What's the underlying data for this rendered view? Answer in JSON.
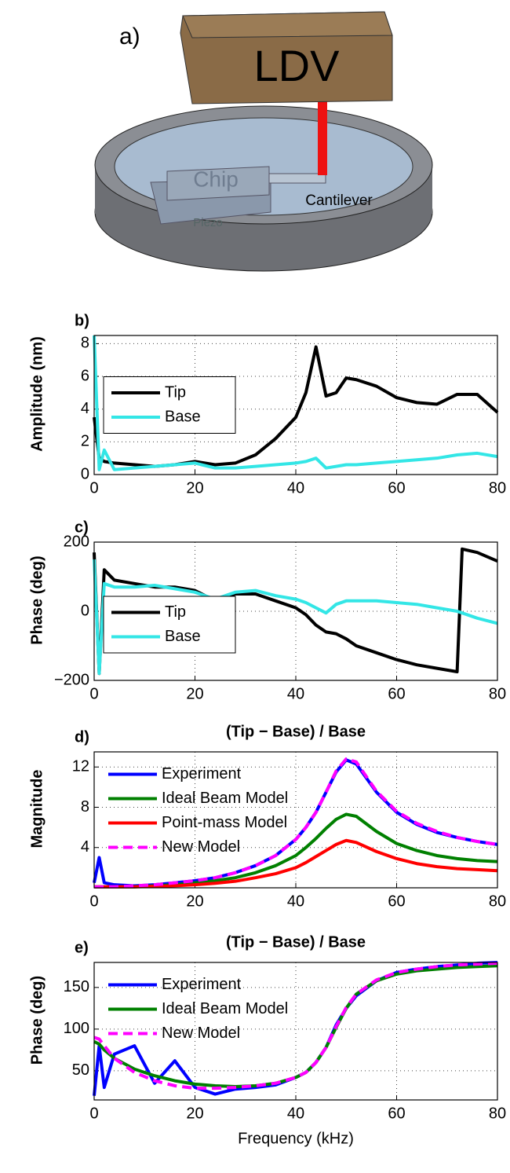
{
  "illustration": {
    "label": "a)",
    "ldv": "LDV",
    "chip": "Chip",
    "cantilever": "Cantilever",
    "piezo": "Piezo"
  },
  "chart_data": [
    {
      "type": "line",
      "label": "b)",
      "y_label": "Amplitude (nm)",
      "x": [
        0,
        1,
        2,
        4,
        8,
        12,
        16,
        20,
        24,
        28,
        32,
        36,
        40,
        42,
        44,
        46,
        48,
        50,
        52,
        56,
        60,
        64,
        68,
        72,
        76,
        80
      ],
      "series": [
        {
          "name": "Tip",
          "color": "#000000",
          "values": [
            3.5,
            1,
            0.8,
            0.7,
            0.6,
            0.5,
            0.6,
            0.8,
            0.6,
            0.7,
            1.2,
            2.2,
            3.5,
            5,
            7.8,
            4.8,
            5,
            5.9,
            5.8,
            5.4,
            4.7,
            4.4,
            4.3,
            4.9,
            4.9,
            3.8
          ]
        },
        {
          "name": "Base",
          "color": "#33e6e6",
          "values": [
            8.5,
            0.3,
            1.5,
            0.3,
            0.4,
            0.5,
            0.6,
            0.7,
            0.4,
            0.4,
            0.5,
            0.6,
            0.7,
            0.8,
            1.0,
            0.4,
            0.5,
            0.6,
            0.6,
            0.7,
            0.8,
            0.9,
            1.0,
            1.2,
            1.3,
            1.1
          ]
        }
      ],
      "xlim": [
        0,
        80
      ],
      "xticks": [
        0,
        20,
        40,
        60,
        80
      ],
      "ylim": [
        0,
        8.5
      ],
      "yticks": [
        0,
        2,
        4,
        6,
        8
      ],
      "grid": true,
      "legend": "center left",
      "legend_box": true
    },
    {
      "type": "line",
      "label": "c)",
      "y_label": "Phase (deg)",
      "x": [
        0,
        1,
        2,
        4,
        8,
        12,
        16,
        20,
        24,
        28,
        32,
        36,
        40,
        42,
        44,
        46,
        48,
        50,
        52,
        56,
        60,
        64,
        68,
        72,
        73,
        76,
        80
      ],
      "series": [
        {
          "name": "Tip",
          "color": "#000000",
          "values": [
            170,
            -180,
            120,
            90,
            80,
            70,
            70,
            60,
            30,
            50,
            50,
            30,
            10,
            -10,
            -40,
            -60,
            -65,
            -80,
            -100,
            -120,
            -140,
            -155,
            -165,
            -175,
            180,
            170,
            145
          ]
        },
        {
          "name": "Base",
          "color": "#33e6e6",
          "values": [
            150,
            -180,
            80,
            70,
            70,
            75,
            65,
            55,
            35,
            55,
            60,
            45,
            35,
            25,
            10,
            -5,
            20,
            30,
            30,
            30,
            25,
            20,
            10,
            0,
            -5,
            -20,
            -35
          ]
        }
      ],
      "xlim": [
        0,
        80
      ],
      "xticks": [
        0,
        20,
        40,
        60,
        80
      ],
      "ylim": [
        -200,
        200
      ],
      "yticks": [
        {
          "value": -200,
          "label": "−200"
        },
        0,
        200
      ],
      "grid": true,
      "legend": "lower left",
      "legend_box": true
    },
    {
      "type": "line",
      "label": "d)",
      "title": "(Tip − Base) / Base",
      "y_label": "Magnitude",
      "x": [
        0,
        1,
        2,
        4,
        8,
        12,
        16,
        20,
        24,
        28,
        32,
        36,
        40,
        42,
        44,
        46,
        48,
        50,
        52,
        56,
        60,
        64,
        68,
        72,
        76,
        80
      ],
      "series": [
        {
          "name": "Experiment",
          "color": "#0000ff",
          "values": [
            0.5,
            3,
            0.5,
            0.3,
            0.2,
            0.3,
            0.5,
            0.7,
            1,
            1.5,
            2.2,
            3.2,
            4.8,
            6,
            7.5,
            9.5,
            11.5,
            12.7,
            12.3,
            9.5,
            7.5,
            6.3,
            5.5,
            5,
            4.6,
            4.3
          ]
        },
        {
          "name": "Ideal Beam Model",
          "color": "#008000",
          "values": [
            0.1,
            0.1,
            0.1,
            0.1,
            0.1,
            0.2,
            0.3,
            0.5,
            0.7,
            1.0,
            1.5,
            2.2,
            3.2,
            4,
            4.9,
            5.9,
            6.8,
            7.3,
            7.1,
            5.6,
            4.4,
            3.7,
            3.2,
            2.9,
            2.7,
            2.6
          ]
        },
        {
          "name": "Point-mass Model",
          "color": "#ff0000",
          "values": [
            0.1,
            0.1,
            0.1,
            0.1,
            0.1,
            0.15,
            0.2,
            0.3,
            0.45,
            0.65,
            1,
            1.4,
            2,
            2.5,
            3.1,
            3.7,
            4.3,
            4.7,
            4.5,
            3.6,
            2.9,
            2.4,
            2.1,
            1.9,
            1.8,
            1.7
          ]
        },
        {
          "name": "New Model",
          "color": "#ff00ff",
          "dash": true,
          "values": [
            0.1,
            0.1,
            0.1,
            0.1,
            0.2,
            0.3,
            0.5,
            0.7,
            1,
            1.5,
            2.2,
            3.2,
            4.8,
            6,
            7.5,
            9.5,
            11.6,
            12.8,
            12.5,
            9.6,
            7.6,
            6.4,
            5.6,
            5,
            4.6,
            4.3
          ]
        }
      ],
      "xlim": [
        0,
        80
      ],
      "xticks": [
        0,
        20,
        40,
        60,
        80
      ],
      "ylim": [
        0,
        13.5
      ],
      "yticks": [
        4,
        8,
        12
      ],
      "grid": true,
      "legend": "upper left",
      "legend_box": false
    },
    {
      "type": "line",
      "label": "e)",
      "title": "(Tip − Base) / Base",
      "y_label": "Phase (deg)",
      "x_label": "Frequency (kHz)",
      "x": [
        0,
        1,
        2,
        4,
        8,
        12,
        16,
        20,
        24,
        28,
        32,
        36,
        40,
        42,
        44,
        46,
        48,
        50,
        52,
        56,
        60,
        64,
        68,
        72,
        76,
        80
      ],
      "series": [
        {
          "name": "Experiment",
          "color": "#0000ff",
          "values": [
            20,
            80,
            30,
            70,
            80,
            35,
            62,
            30,
            22,
            28,
            30,
            33,
            42,
            48,
            60,
            78,
            105,
            125,
            140,
            158,
            168,
            172,
            175,
            177,
            179,
            180
          ]
        },
        {
          "name": "Ideal Beam Model",
          "color": "#008000",
          "values": [
            85,
            82,
            75,
            65,
            52,
            44,
            38,
            34,
            32,
            31,
            32,
            35,
            42,
            48,
            60,
            78,
            102,
            125,
            142,
            158,
            166,
            170,
            172,
            174,
            175,
            176
          ]
        },
        {
          "name": "New Model",
          "color": "#ff00ff",
          "dash": true,
          "values": [
            90,
            88,
            80,
            65,
            48,
            38,
            32,
            29,
            29,
            30,
            32,
            35,
            42,
            48,
            60,
            78,
            103,
            126,
            142,
            159,
            168,
            172,
            175,
            177,
            178,
            179
          ]
        }
      ],
      "xlim": [
        0,
        80
      ],
      "xticks": [
        0,
        20,
        40,
        60,
        80
      ],
      "ylim": [
        15,
        180
      ],
      "yticks": [
        50,
        100,
        150
      ],
      "grid": true,
      "legend": "upper left",
      "legend_box": false
    }
  ]
}
